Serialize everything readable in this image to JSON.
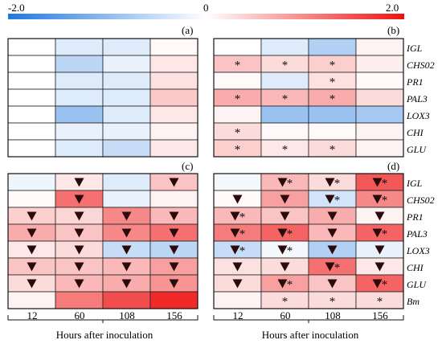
{
  "chart_data": {
    "type": "heatmap",
    "colorbar": {
      "min_label": "-2.0",
      "mid_label": "0",
      "max_label": "2.0",
      "min": -2.0,
      "max": 2.0,
      "colors": {
        "low": "#1f78e0",
        "mid": "#ffffff",
        "high": "#ee1111"
      }
    },
    "x_categories": [
      "12",
      "60",
      "108",
      "156"
    ],
    "xlabel": "Hours after inoculation",
    "top_genes": [
      "IGL",
      "CHS02",
      "PR1",
      "PAL3",
      "LOX3",
      "CHI",
      "GLU"
    ],
    "bottom_genes": [
      "IGL",
      "CHS02",
      "PR1",
      "PAL3",
      "LOX3",
      "CHI",
      "GLU",
      "Bm"
    ],
    "panels": [
      {
        "label": "(a)",
        "values": [
          [
            0,
            -0.3,
            -0.3,
            0.05
          ],
          [
            0,
            -0.6,
            -0.2,
            0.2
          ],
          [
            0,
            -0.3,
            -0.3,
            0.25
          ],
          [
            0,
            -0.3,
            -0.3,
            0.45
          ],
          [
            0,
            -0.9,
            -0.3,
            0.2
          ],
          [
            0,
            -0.2,
            -0.2,
            0.1
          ],
          [
            0,
            -0.3,
            -0.5,
            0.2
          ]
        ],
        "triangles": [
          [
            0,
            0,
            0,
            0
          ],
          [
            0,
            0,
            0,
            0
          ],
          [
            0,
            0,
            0,
            0
          ],
          [
            0,
            0,
            0,
            0
          ],
          [
            0,
            0,
            0,
            0
          ],
          [
            0,
            0,
            0,
            0
          ],
          [
            0,
            0,
            0,
            0
          ]
        ],
        "stars": [
          [
            0,
            0,
            0,
            0
          ],
          [
            0,
            0,
            0,
            0
          ],
          [
            0,
            0,
            0,
            0
          ],
          [
            0,
            0,
            0,
            0
          ],
          [
            0,
            0,
            0,
            0
          ],
          [
            0,
            0,
            0,
            0
          ],
          [
            0,
            0,
            0,
            0
          ]
        ]
      },
      {
        "label": "(b)",
        "values": [
          [
            0,
            -0.3,
            -0.7,
            0.1
          ],
          [
            0.5,
            0.3,
            0.4,
            0.15
          ],
          [
            0.05,
            -0.3,
            0.25,
            0.05
          ],
          [
            0.7,
            0.6,
            0.7,
            0.3
          ],
          [
            0.1,
            -0.9,
            -0.9,
            -0.8
          ],
          [
            0.3,
            0.05,
            0.05,
            0.1
          ],
          [
            0.4,
            0.2,
            0.3,
            0.1
          ]
        ],
        "triangles": [
          [
            0,
            0,
            0,
            0
          ],
          [
            0,
            0,
            0,
            0
          ],
          [
            0,
            0,
            0,
            0
          ],
          [
            0,
            0,
            0,
            0
          ],
          [
            0,
            0,
            0,
            0
          ],
          [
            0,
            0,
            0,
            0
          ],
          [
            0,
            0,
            0,
            0
          ]
        ],
        "stars": [
          [
            0,
            0,
            0,
            0
          ],
          [
            1,
            1,
            1,
            0
          ],
          [
            0,
            0,
            1,
            0
          ],
          [
            1,
            1,
            1,
            0
          ],
          [
            0,
            0,
            0,
            0
          ],
          [
            1,
            0,
            0,
            0
          ],
          [
            1,
            1,
            1,
            0
          ]
        ]
      },
      {
        "label": "(c)",
        "values": [
          [
            -0.15,
            0.2,
            -0.3,
            0.5
          ],
          [
            0.05,
            1.2,
            -0.2,
            0.1
          ],
          [
            0.4,
            0.35,
            1.0,
            0.6
          ],
          [
            0.7,
            0.5,
            1.0,
            1.2
          ],
          [
            0.2,
            0.3,
            -0.5,
            -0.6
          ],
          [
            0.5,
            0.5,
            0.6,
            0.8
          ],
          [
            0.3,
            0.6,
            0.7,
            0.9
          ],
          [
            0.1,
            1.1,
            1.5,
            1.8
          ]
        ],
        "triangles": [
          [
            0,
            1,
            0,
            1
          ],
          [
            0,
            1,
            0,
            0
          ],
          [
            1,
            1,
            1,
            1
          ],
          [
            1,
            1,
            1,
            1
          ],
          [
            1,
            1,
            1,
            1
          ],
          [
            1,
            1,
            1,
            1
          ],
          [
            1,
            1,
            1,
            1
          ],
          [
            0,
            0,
            0,
            0
          ]
        ],
        "stars": [
          [
            0,
            0,
            0,
            0
          ],
          [
            0,
            0,
            0,
            0
          ],
          [
            0,
            0,
            0,
            0
          ],
          [
            0,
            0,
            0,
            0
          ],
          [
            0,
            0,
            0,
            0
          ],
          [
            0,
            0,
            0,
            0
          ],
          [
            0,
            0,
            0,
            0
          ],
          [
            0,
            0,
            0,
            0
          ]
        ]
      },
      {
        "label": "(d)",
        "values": [
          [
            -0.1,
            0.6,
            0.3,
            1.4
          ],
          [
            0.05,
            0.8,
            -0.4,
            1.0
          ],
          [
            0.6,
            0.5,
            0.7,
            0.1
          ],
          [
            1.1,
            1.3,
            0.6,
            1.3
          ],
          [
            -0.5,
            -0.1,
            -0.7,
            -0.2
          ],
          [
            0.25,
            0.3,
            1.2,
            0.2
          ],
          [
            0.3,
            0.8,
            0.5,
            1.3
          ],
          [
            0.1,
            0.3,
            0.3,
            0.3
          ]
        ],
        "triangles": [
          [
            0,
            1,
            1,
            1
          ],
          [
            1,
            1,
            1,
            1
          ],
          [
            1,
            1,
            1,
            1
          ],
          [
            1,
            1,
            1,
            1
          ],
          [
            1,
            1,
            1,
            1
          ],
          [
            1,
            1,
            1,
            1
          ],
          [
            1,
            1,
            1,
            1
          ],
          [
            0,
            0,
            0,
            0
          ]
        ],
        "stars": [
          [
            0,
            1,
            1,
            1
          ],
          [
            0,
            0,
            1,
            1
          ],
          [
            1,
            0,
            0,
            0
          ],
          [
            1,
            1,
            0,
            1
          ],
          [
            1,
            1,
            0,
            0
          ],
          [
            0,
            0,
            1,
            0
          ],
          [
            0,
            1,
            0,
            1
          ],
          [
            0,
            1,
            1,
            1
          ]
        ]
      }
    ]
  }
}
